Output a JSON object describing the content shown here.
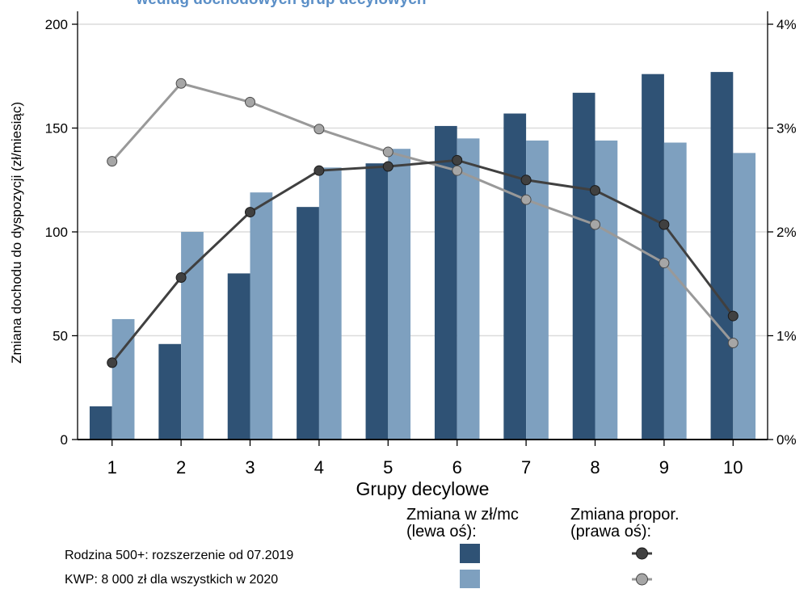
{
  "chart_data": {
    "type": "bar",
    "title": "według dochodowych grup decylowych",
    "xlabel": "Grupy decylowe",
    "ylabel": "Zmiana dochodu do dyspozycji (zł/miesiąc)",
    "categories": [
      "1",
      "2",
      "3",
      "4",
      "5",
      "6",
      "7",
      "8",
      "9",
      "10"
    ],
    "ylim": [
      0,
      200
    ],
    "yticks": [
      0,
      50,
      100,
      150,
      200
    ],
    "y2lim": [
      0,
      4
    ],
    "y2ticks": [
      "0%",
      "1%",
      "2%",
      "3%",
      "4%"
    ],
    "grid": true,
    "series": [
      {
        "name": "Rodzina 500+: rozszerzenie od 07.2019",
        "kind": "bar",
        "axis": "left",
        "color": "#2f5275",
        "values": [
          16,
          46,
          80,
          112,
          133,
          151,
          157,
          167,
          176,
          177
        ]
      },
      {
        "name": "KWP: 8 000 zł dla wszystkich w 2020",
        "kind": "bar",
        "axis": "left",
        "color": "#7ea0bf",
        "values": [
          58,
          100,
          119,
          131,
          140,
          145,
          144,
          144,
          143,
          138
        ]
      },
      {
        "name": "Rodzina 500+: rozszerzenie od 07.2019",
        "kind": "line",
        "axis": "right",
        "color": "#404040",
        "values": [
          0.74,
          1.56,
          2.19,
          2.59,
          2.63,
          2.69,
          2.5,
          2.4,
          2.07,
          1.19
        ]
      },
      {
        "name": "KWP: 8 000 zł dla wszystkich w 2020",
        "kind": "line",
        "axis": "right",
        "color": "#999999",
        "values": [
          2.68,
          3.43,
          3.25,
          2.99,
          2.77,
          2.59,
          2.31,
          2.07,
          1.7,
          0.93
        ]
      }
    ],
    "legend": {
      "placement": "bottom",
      "col1_head": [
        "Zmiana w zł/mc",
        "(lewa oś):"
      ],
      "col2_head": [
        "Zmiana propor.",
        "(prawa oś):"
      ],
      "rows": [
        "Rodzina 500+: rozszerzenie od 07.2019",
        "KWP: 8 000 zł dla wszystkich w 2020"
      ]
    }
  }
}
